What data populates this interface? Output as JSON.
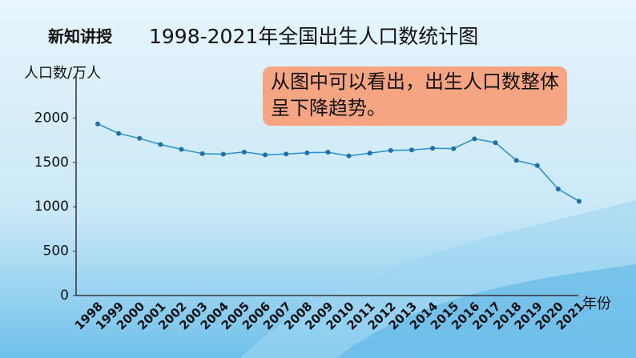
{
  "header": "新知讲授",
  "chart_data": {
    "type": "line",
    "title": "1998-2021年全国出生人口数统计图",
    "y_label": "人口数/万人",
    "x_label": "年份",
    "annotation": "从图中可以看出，出生人口数整体呈下降趋势。",
    "categories": [
      "1998",
      "1999",
      "2000",
      "2001",
      "2002",
      "2003",
      "2004",
      "2005",
      "2006",
      "2007",
      "2008",
      "2009",
      "2010",
      "2011",
      "2012",
      "2013",
      "2014",
      "2015",
      "2016",
      "2017",
      "2018",
      "2019",
      "2020",
      "2021"
    ],
    "values": [
      1934,
      1827,
      1771,
      1702,
      1647,
      1599,
      1593,
      1617,
      1585,
      1595,
      1608,
      1615,
      1574,
      1604,
      1635,
      1640,
      1660,
      1655,
      1766,
      1723,
      1523,
      1465,
      1200,
      1062
    ],
    "color": "#2a8fd0",
    "marker_color": "#1f6eae",
    "ylim": [
      0,
      2500
    ],
    "yticks": [
      0,
      500,
      1000,
      1500,
      2000
    ]
  }
}
